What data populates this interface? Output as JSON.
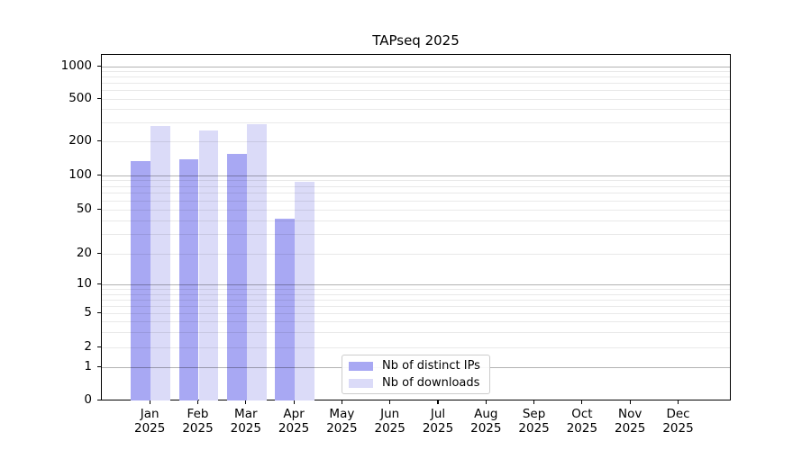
{
  "title": "TAPseq 2025",
  "year_label": "2025",
  "chart_data": {
    "type": "bar",
    "title": "TAPseq 2025",
    "categories": [
      "Jan",
      "Feb",
      "Mar",
      "Apr",
      "May",
      "Jun",
      "Jul",
      "Aug",
      "Sep",
      "Oct",
      "Nov",
      "Dec"
    ],
    "xlabel": "",
    "ylabel": "",
    "yscale": "symlog",
    "yticks": [
      0,
      1,
      2,
      5,
      10,
      20,
      50,
      100,
      200,
      500,
      1000
    ],
    "ylim": [
      0,
      1300
    ],
    "grid": true,
    "legend_position": "bottom-center-inside",
    "series": [
      {
        "name": "Nb of distinct IPs",
        "color": "#a8a8f3",
        "values": [
          135,
          140,
          157,
          42,
          null,
          null,
          null,
          null,
          null,
          null,
          null,
          null
        ]
      },
      {
        "name": "Nb of downloads",
        "color": "#dbdbf8",
        "values": [
          280,
          255,
          290,
          88,
          null,
          null,
          null,
          null,
          null,
          null,
          null,
          null
        ]
      }
    ]
  }
}
